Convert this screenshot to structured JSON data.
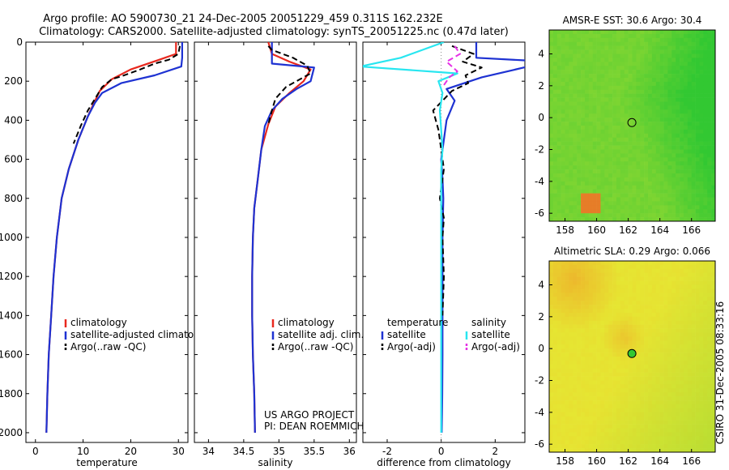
{
  "title_line1": "Argo profile: AO 5900730_21 24-Dec-2005 20051229_459 0.311S 162.232E",
  "title_line2": "Climatology: CARS2000. Satellite-adjusted climatology: synTS_20051225.nc (0.47d later)",
  "side_label": "CSIRO 31-Dec-2005 08:33:16",
  "project_line1": "US ARGO PROJECT",
  "project_line2": "PI: DEAN ROEMMICH",
  "colors": {
    "climatology": "#e8281e",
    "satellite": "#1e32d2",
    "argo": "#000000",
    "sal_satellite": "#28e6f0",
    "sal_argo": "#e632e6",
    "map_green": "#32c832",
    "map_yellow": "#e6e632",
    "map_orange": "#f0a028"
  },
  "chart_data": [
    {
      "type": "line",
      "id": "temperature",
      "xlabel": "temperature",
      "xlim": [
        -2,
        32
      ],
      "ylim": [
        0,
        2050
      ],
      "xticks": [
        0,
        10,
        20,
        30
      ],
      "yticks": [
        0,
        200,
        400,
        600,
        800,
        1000,
        1200,
        1400,
        1600,
        1800,
        2000
      ],
      "y_inverted": true,
      "legend": [
        "climatology",
        "satellite-adjusted climatology",
        "Argo(..raw -QC)"
      ],
      "series": [
        {
          "name": "climatology",
          "color": "red",
          "x": [
            29.5,
            29.5,
            26,
            20,
            16,
            13.5,
            12.5,
            11,
            9,
            7,
            5.5,
            4.5,
            3.8,
            3.3,
            2.8,
            2.5,
            2.3
          ],
          "y": [
            0,
            60,
            90,
            140,
            190,
            250,
            300,
            380,
            500,
            650,
            800,
            1000,
            1200,
            1400,
            1600,
            1800,
            2000
          ]
        },
        {
          "name": "satellite-adjusted climatology",
          "color": "blue",
          "x": [
            30.8,
            30.8,
            30.6,
            25,
            18,
            14,
            12.5,
            11,
            9,
            7,
            5.5,
            4.5,
            3.8,
            3.3,
            2.8,
            2.5,
            2.3
          ],
          "y": [
            0,
            80,
            125,
            170,
            210,
            260,
            310,
            380,
            500,
            650,
            800,
            1000,
            1200,
            1400,
            1600,
            1800,
            2000
          ]
        },
        {
          "name": "Argo(..raw -QC)",
          "color": "black",
          "dashed": true,
          "x": [
            30.3,
            30,
            28,
            25,
            22,
            18,
            16,
            14,
            12.5,
            11,
            9.5,
            8
          ],
          "y": [
            20,
            60,
            90,
            110,
            140,
            175,
            190,
            230,
            290,
            350,
            430,
            520
          ]
        }
      ]
    },
    {
      "type": "line",
      "id": "salinity",
      "xlabel": "salinity",
      "xlim": [
        33.8,
        36.1
      ],
      "ylim": [
        0,
        2050
      ],
      "xticks": [
        34,
        34.5,
        35,
        35.5,
        36
      ],
      "xticklabels": [
        "34",
        "34.5",
        "35",
        "35.5",
        "36"
      ],
      "yticks": [
        0,
        200,
        400,
        600,
        800,
        1000,
        1200,
        1400,
        1600,
        1800,
        2000
      ],
      "y_inverted": true,
      "legend": [
        "climatology",
        "satellite adj. clim.",
        "Argo(..raw -QC)"
      ],
      "series": [
        {
          "name": "climatology",
          "color": "red",
          "x": [
            34.85,
            34.9,
            35.15,
            35.45,
            35.35,
            35.15,
            34.95,
            34.85,
            34.75,
            34.7,
            34.65,
            34.63,
            34.62,
            34.62,
            34.63,
            34.65,
            34.66
          ],
          "y": [
            0,
            60,
            100,
            140,
            200,
            260,
            330,
            420,
            550,
            700,
            850,
            1000,
            1200,
            1400,
            1600,
            1800,
            2000
          ]
        },
        {
          "name": "satellite adj. clim.",
          "color": "blue",
          "x": [
            34.9,
            34.9,
            35.5,
            35.45,
            35.25,
            35.05,
            34.9,
            34.8,
            34.75,
            34.7,
            34.65,
            34.63,
            34.62,
            34.62,
            34.63,
            34.65,
            34.66
          ],
          "y": [
            0,
            110,
            130,
            200,
            240,
            290,
            350,
            430,
            550,
            700,
            850,
            1000,
            1200,
            1400,
            1600,
            1800,
            2000
          ]
        },
        {
          "name": "Argo(..raw -QC)",
          "color": "black",
          "dashed": true,
          "x": [
            34.85,
            34.9,
            35.2,
            35.4,
            35.45,
            35.3,
            35.1,
            34.95,
            34.9,
            34.85
          ],
          "y": [
            20,
            40,
            80,
            120,
            160,
            190,
            230,
            290,
            350,
            420
          ]
        }
      ]
    },
    {
      "type": "line",
      "id": "difference",
      "xlabel": "difference from climatology",
      "xlim": [
        -2.9,
        3.1
      ],
      "ylim": [
        0,
        2050
      ],
      "xticks": [
        -2,
        0,
        2
      ],
      "yticks": [
        0,
        200,
        400,
        600,
        800,
        1000,
        1200,
        1400,
        1600,
        1800,
        2000
      ],
      "y_inverted": true,
      "legend_left": [
        "temperature",
        "satellite",
        "Argo(-adj)"
      ],
      "legend_right": [
        "salinity",
        "satellite",
        "Argo(-adj)"
      ],
      "series": [
        {
          "name": "temperature satellite",
          "color": "blue",
          "x": [
            1.3,
            1.3,
            4,
            1.5,
            0.2,
            0.5,
            0.2,
            0.1,
            0,
            0.05,
            0.08,
            0.05,
            0.05,
            0.05,
            0.05,
            0.04,
            0.03,
            0.02
          ],
          "y": [
            0,
            80,
            100,
            180,
            240,
            300,
            400,
            500,
            600,
            700,
            800,
            1000,
            1200,
            1400,
            1600,
            1800,
            1900,
            2000
          ]
        },
        {
          "name": "temperature Argo(-adj)",
          "color": "black",
          "dashed": true,
          "x": [
            0.4,
            1.2,
            0.8,
            1.5,
            0.9,
            1,
            0.4,
            -0.3,
            -0.1,
            0,
            0.1,
            -0.05,
            0.1,
            0.05,
            0.1,
            0.05
          ],
          "y": [
            20,
            60,
            100,
            130,
            170,
            210,
            250,
            350,
            450,
            550,
            650,
            800,
            900,
            1000,
            1200,
            1400
          ]
        },
        {
          "name": "salinity satellite",
          "color": "cyan",
          "x": [
            0.1,
            -1.5,
            -3,
            0.6,
            -0.1,
            0.05,
            -0.05,
            0,
            0.05,
            0,
            0,
            0,
            0,
            0,
            0,
            0,
            0,
            0
          ],
          "y": [
            0,
            80,
            125,
            160,
            200,
            260,
            350,
            450,
            550,
            650,
            750,
            900,
            1100,
            1300,
            1500,
            1700,
            1900,
            2000
          ]
        },
        {
          "name": "salinity Argo(-adj)",
          "color": "magenta",
          "dashed": true,
          "x": [
            0.5,
            0.7,
            0.2,
            0.6,
            0.3,
            0.1
          ],
          "y": [
            20,
            60,
            100,
            150,
            180,
            220
          ]
        }
      ]
    },
    {
      "type": "heatmap",
      "id": "sst_map",
      "title": "AMSR-E SST: 30.6 Argo: 30.4",
      "xlim": [
        157,
        167.5
      ],
      "ylim": [
        -6.5,
        5.5
      ],
      "xticks": [
        158,
        160,
        162,
        164,
        166
      ],
      "yticks": [
        -6,
        -4,
        -2,
        0,
        2,
        4
      ],
      "marker": {
        "lon": 162.23,
        "lat": -0.31,
        "style": "open circle"
      }
    },
    {
      "type": "heatmap",
      "id": "sla_map",
      "title": "Altimetric SLA: 0.29 Argo: 0.066",
      "xlim": [
        157,
        167.5
      ],
      "ylim": [
        -6.5,
        5.5
      ],
      "xticks": [
        158,
        160,
        162,
        164,
        166
      ],
      "yticks": [
        -6,
        -4,
        -2,
        0,
        2,
        4
      ],
      "marker": {
        "lon": 162.23,
        "lat": -0.31,
        "style": "filled green circle"
      }
    }
  ]
}
